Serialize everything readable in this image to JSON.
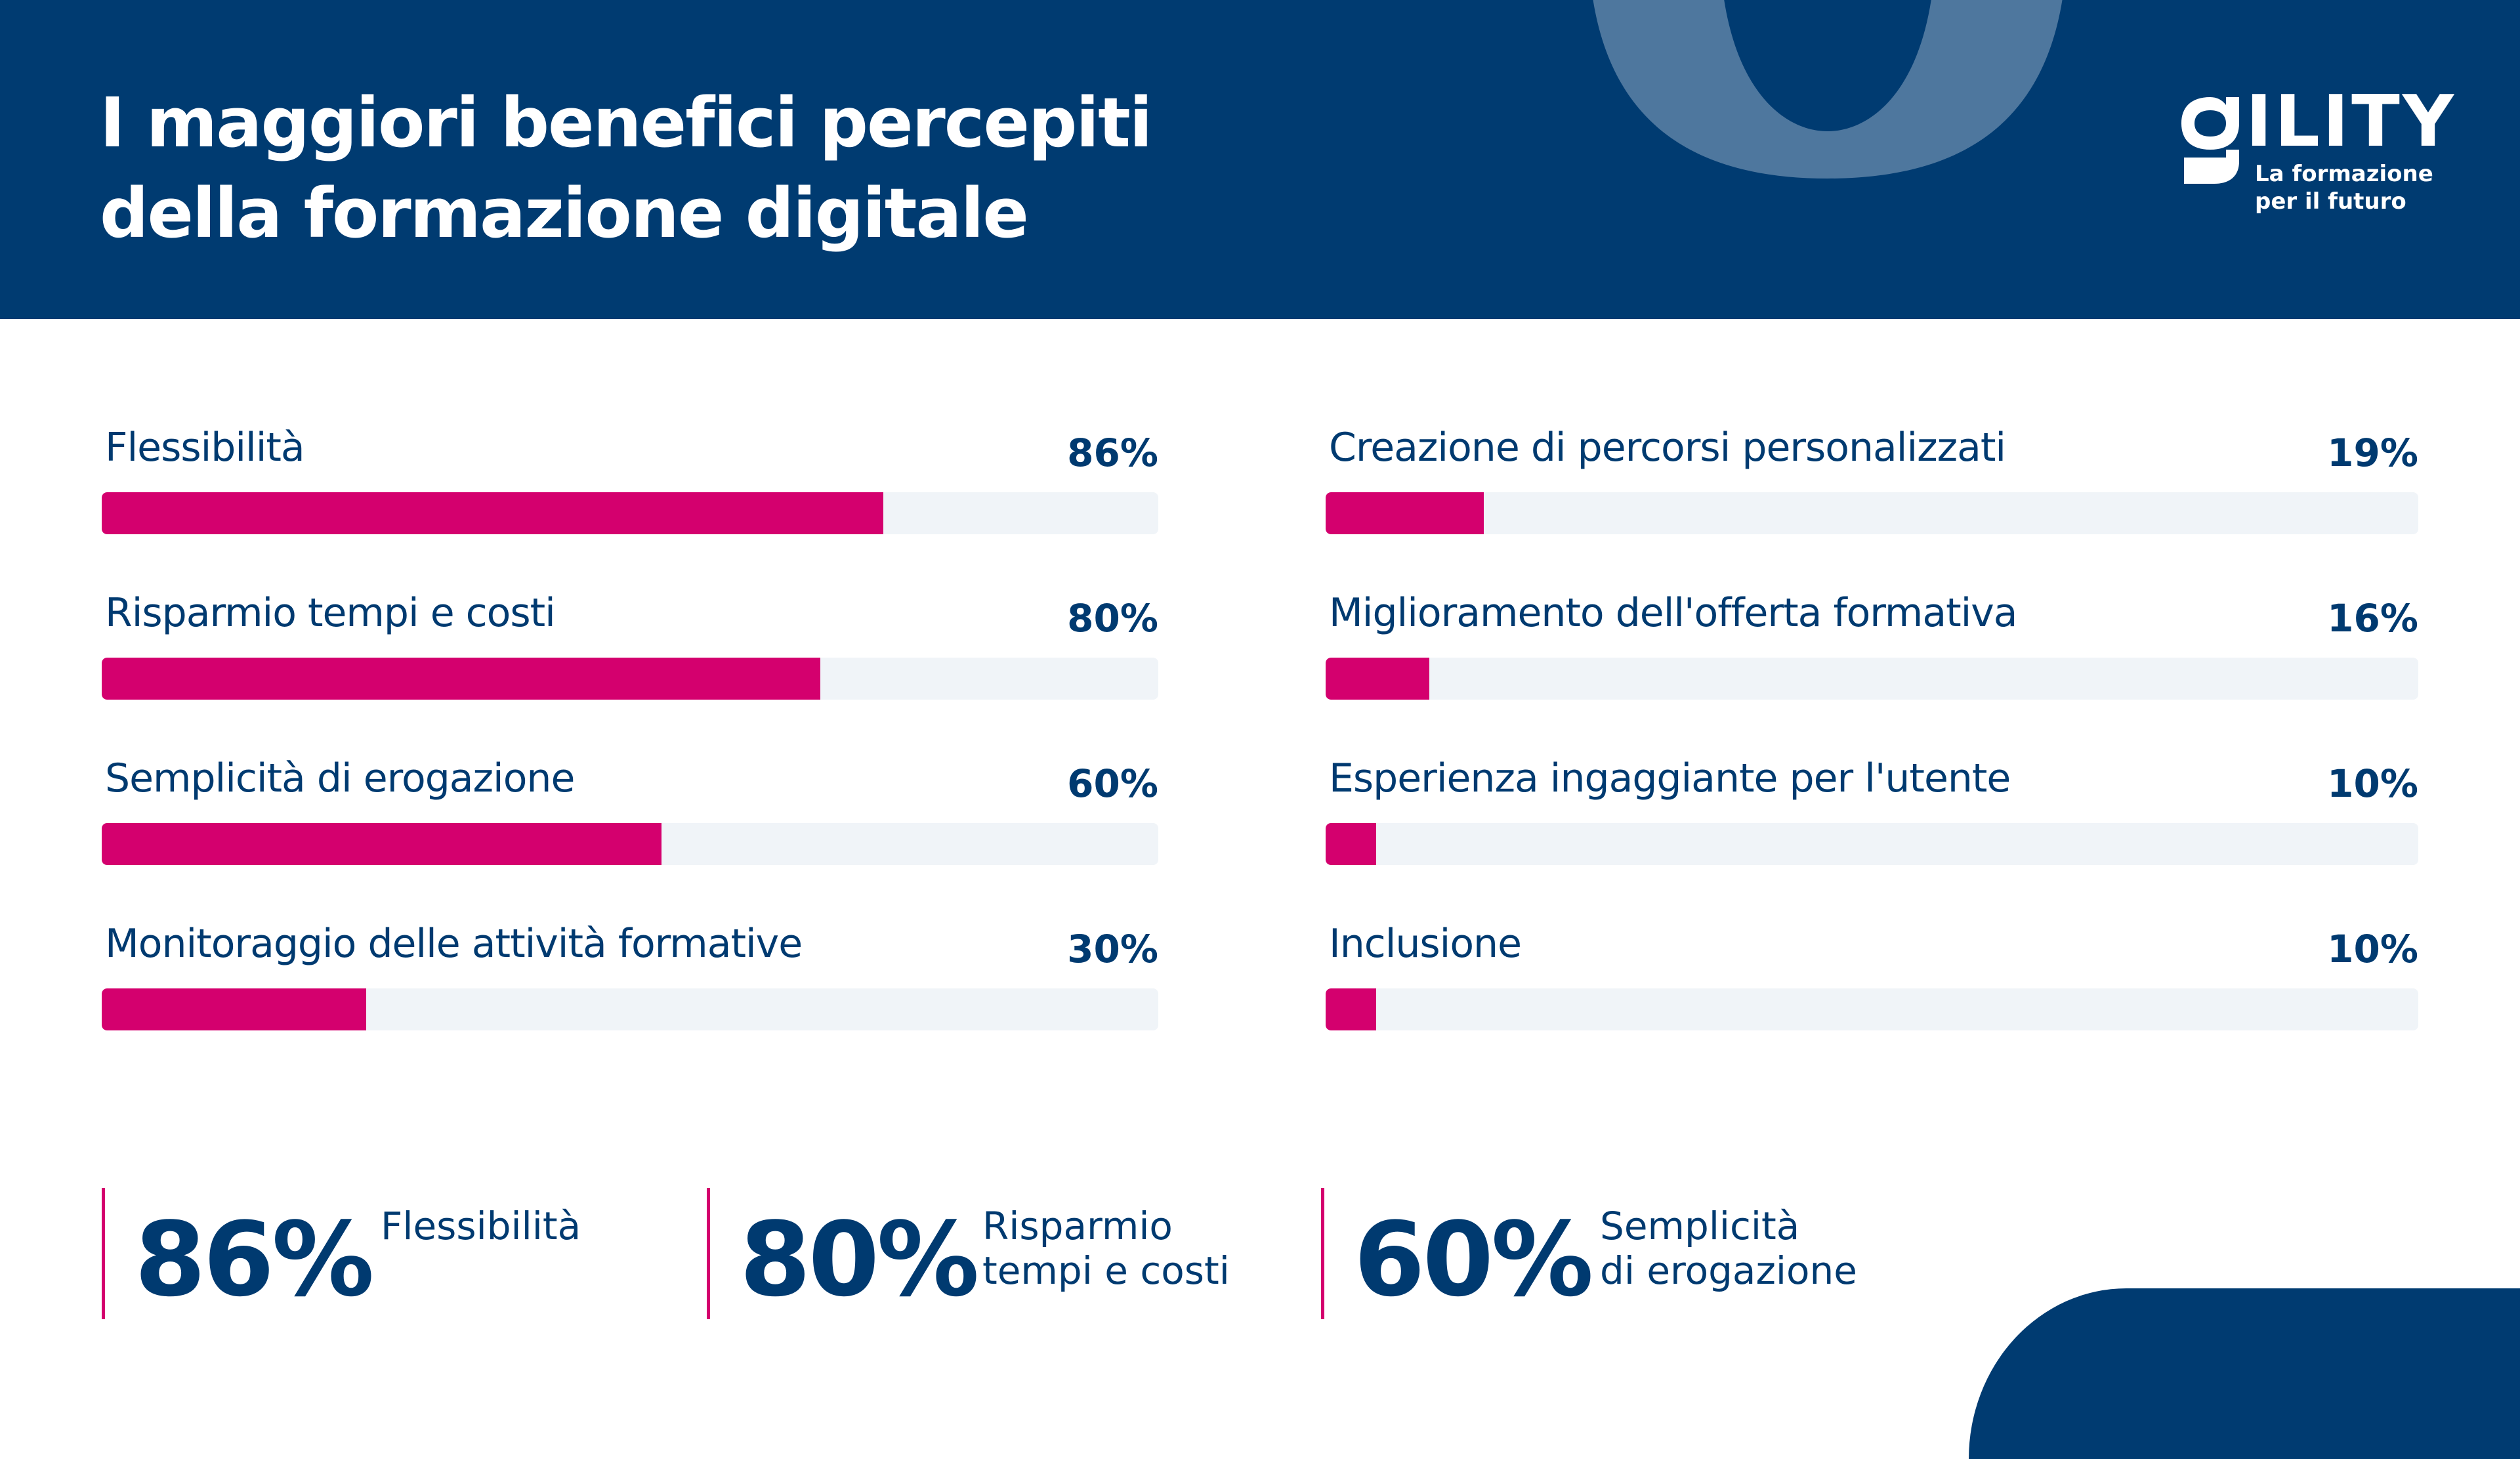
{
  "header": {
    "title_line1": "I maggiori benefici percepiti",
    "title_line2": "della formazione digitale",
    "background_color": "#003b71",
    "decor_color": "#4e779e"
  },
  "logo": {
    "mark": "g",
    "word": "ILITY",
    "tagline_line1": "La formazione",
    "tagline_line2": "per il futuro"
  },
  "colors": {
    "accent": "#d4006e",
    "primary_text": "#003a70",
    "track": "#f0f4f8"
  },
  "chart_data": {
    "type": "bar",
    "orientation": "horizontal",
    "title": "I maggiori benefici percepiti della formazione digitale",
    "unit": "%",
    "series": [
      {
        "column": "left",
        "categories": [
          "Flessibilità",
          "Risparmio tempi e costi",
          "Semplicità di erogazione",
          "Monitoraggio delle attività formative"
        ],
        "values": [
          86,
          80,
          60,
          30
        ],
        "labels": [
          "86%",
          "80%",
          "60%",
          "30%"
        ],
        "bar_fill_fraction": [
          0.74,
          0.68,
          0.53,
          0.25
        ]
      },
      {
        "column": "right",
        "categories": [
          "Creazione di percorsi personalizzati",
          "Miglioramento dell'offerta formativa",
          "Esperienza ingaggiante per l'utente",
          "Inclusione"
        ],
        "values": [
          19,
          16,
          10,
          10
        ],
        "labels": [
          "19%",
          "16%",
          "10%",
          "10%"
        ],
        "bar_fill_fraction": [
          0.145,
          0.095,
          0.046,
          0.046
        ]
      }
    ]
  },
  "highlights": [
    {
      "value": "86%",
      "desc_line1": "Flessibilità",
      "desc_line2": ""
    },
    {
      "value": "80%",
      "desc_line1": "Risparmio",
      "desc_line2": "tempi e costi"
    },
    {
      "value": "60%",
      "desc_line1": "Semplicità",
      "desc_line2": "di erogazione"
    }
  ]
}
